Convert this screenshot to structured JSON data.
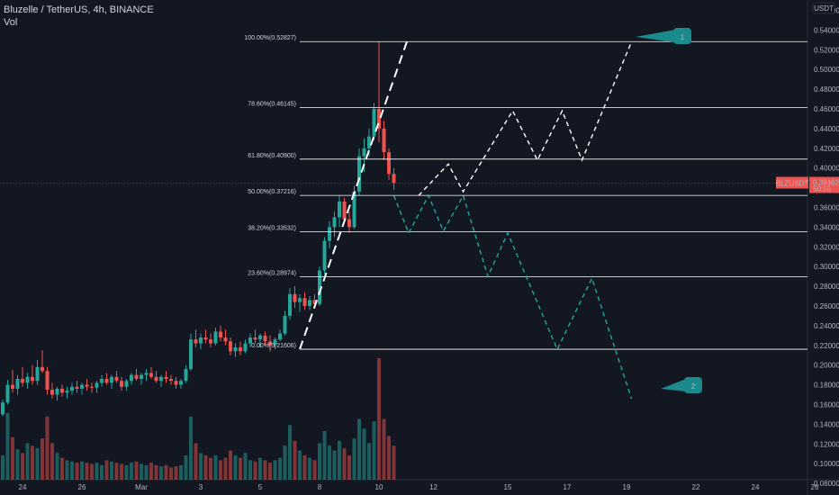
{
  "header": {
    "symbol_line": "Bluzelle / TetherUS, 4h, BINANCE",
    "volume_label": "Vol"
  },
  "currency": "USDT",
  "price_badge": {
    "symbol": "BLZUSDT",
    "value": "0.38462",
    "countdown": "50:55",
    "color": "#ef5350"
  },
  "colors": {
    "up": "#26a69a",
    "down": "#ef5350",
    "background": "#131722",
    "fib_line": "#ffffff",
    "bull_path": "#ffffff",
    "bear_path": "#26a69a",
    "marker": "#1b8a8c"
  },
  "markers": [
    {
      "label": "1",
      "icon": "flag-marker"
    },
    {
      "label": "2",
      "icon": "flag-marker"
    }
  ],
  "chart_data": {
    "type": "candlestick",
    "title": "Bluzelle / TetherUS, 4h, BINANCE",
    "ylabel": "USDT",
    "ylim": [
      0.07,
      0.565
    ],
    "y_ticks": [
      0.56,
      0.54,
      0.52,
      0.5,
      0.48,
      0.46,
      0.44,
      0.42,
      0.4,
      0.38,
      0.36,
      0.34,
      0.32,
      0.3,
      0.28,
      0.26,
      0.24,
      0.22,
      0.2,
      0.18,
      0.16,
      0.14,
      0.12,
      0.1,
      0.08
    ],
    "x_tick_labels": [
      "24",
      "26",
      "Mar",
      "3",
      "5",
      "8",
      "10",
      "12",
      "15",
      "17",
      "19",
      "22",
      "24",
      "26"
    ],
    "x_tick_index": [
      4,
      16,
      28,
      40,
      52,
      64,
      76,
      87,
      102,
      114,
      126,
      140,
      152,
      164
    ],
    "grid": false,
    "fib_levels": [
      {
        "label": "100.00%(0.52827)",
        "value": 0.52827
      },
      {
        "label": "78.60%(0.46145)",
        "value": 0.46145
      },
      {
        "label": "61.80%(0.40900)",
        "value": 0.409
      },
      {
        "label": "50.00%(0.37216)",
        "value": 0.37216
      },
      {
        "label": "38.20%(0.33532)",
        "value": 0.33532
      },
      {
        "label": "23.60%(0.28974)",
        "value": 0.28974
      },
      {
        "label": "0.00%(0.21606)",
        "value": 0.21606
      }
    ],
    "candles": [
      [
        0.15,
        0.165,
        0.148,
        0.162
      ],
      [
        0.162,
        0.185,
        0.16,
        0.18
      ],
      [
        0.18,
        0.195,
        0.172,
        0.176
      ],
      [
        0.176,
        0.19,
        0.17,
        0.186
      ],
      [
        0.186,
        0.198,
        0.178,
        0.182
      ],
      [
        0.182,
        0.192,
        0.176,
        0.188
      ],
      [
        0.188,
        0.2,
        0.18,
        0.184
      ],
      [
        0.184,
        0.205,
        0.18,
        0.198
      ],
      [
        0.198,
        0.215,
        0.192,
        0.194
      ],
      [
        0.194,
        0.198,
        0.17,
        0.175
      ],
      [
        0.175,
        0.182,
        0.166,
        0.17
      ],
      [
        0.17,
        0.178,
        0.164,
        0.176
      ],
      [
        0.176,
        0.18,
        0.168,
        0.172
      ],
      [
        0.172,
        0.178,
        0.166,
        0.174
      ],
      [
        0.174,
        0.182,
        0.17,
        0.178
      ],
      [
        0.178,
        0.184,
        0.172,
        0.176
      ],
      [
        0.176,
        0.182,
        0.17,
        0.18
      ],
      [
        0.18,
        0.186,
        0.174,
        0.178
      ],
      [
        0.178,
        0.182,
        0.172,
        0.177
      ],
      [
        0.177,
        0.184,
        0.172,
        0.182
      ],
      [
        0.182,
        0.19,
        0.178,
        0.186
      ],
      [
        0.186,
        0.192,
        0.18,
        0.182
      ],
      [
        0.182,
        0.19,
        0.176,
        0.188
      ],
      [
        0.188,
        0.194,
        0.182,
        0.184
      ],
      [
        0.184,
        0.188,
        0.174,
        0.178
      ],
      [
        0.178,
        0.186,
        0.174,
        0.184
      ],
      [
        0.184,
        0.192,
        0.18,
        0.19
      ],
      [
        0.19,
        0.196,
        0.184,
        0.186
      ],
      [
        0.186,
        0.192,
        0.18,
        0.19
      ],
      [
        0.19,
        0.196,
        0.184,
        0.192
      ],
      [
        0.192,
        0.198,
        0.186,
        0.188
      ],
      [
        0.188,
        0.194,
        0.182,
        0.184
      ],
      [
        0.184,
        0.19,
        0.178,
        0.188
      ],
      [
        0.188,
        0.194,
        0.182,
        0.186
      ],
      [
        0.186,
        0.19,
        0.18,
        0.184
      ],
      [
        0.184,
        0.188,
        0.176,
        0.18
      ],
      [
        0.18,
        0.186,
        0.176,
        0.184
      ],
      [
        0.184,
        0.2,
        0.182,
        0.196
      ],
      [
        0.196,
        0.232,
        0.194,
        0.226
      ],
      [
        0.226,
        0.236,
        0.218,
        0.222
      ],
      [
        0.222,
        0.232,
        0.216,
        0.228
      ],
      [
        0.228,
        0.236,
        0.222,
        0.226
      ],
      [
        0.226,
        0.232,
        0.218,
        0.222
      ],
      [
        0.222,
        0.238,
        0.22,
        0.234
      ],
      [
        0.234,
        0.24,
        0.224,
        0.228
      ],
      [
        0.228,
        0.236,
        0.22,
        0.224
      ],
      [
        0.224,
        0.228,
        0.21,
        0.214
      ],
      [
        0.214,
        0.222,
        0.208,
        0.218
      ],
      [
        0.218,
        0.224,
        0.21,
        0.214
      ],
      [
        0.214,
        0.226,
        0.212,
        0.222
      ],
      [
        0.222,
        0.232,
        0.218,
        0.228
      ],
      [
        0.228,
        0.236,
        0.222,
        0.226
      ],
      [
        0.226,
        0.232,
        0.218,
        0.23
      ],
      [
        0.23,
        0.234,
        0.22,
        0.224
      ],
      [
        0.224,
        0.23,
        0.214,
        0.22
      ],
      [
        0.22,
        0.228,
        0.216,
        0.226
      ],
      [
        0.226,
        0.236,
        0.224,
        0.232
      ],
      [
        0.232,
        0.255,
        0.23,
        0.25
      ],
      [
        0.25,
        0.278,
        0.246,
        0.272
      ],
      [
        0.272,
        0.28,
        0.258,
        0.264
      ],
      [
        0.264,
        0.272,
        0.254,
        0.268
      ],
      [
        0.268,
        0.274,
        0.256,
        0.26
      ],
      [
        0.26,
        0.27,
        0.256,
        0.266
      ],
      [
        0.266,
        0.272,
        0.258,
        0.262
      ],
      [
        0.262,
        0.3,
        0.26,
        0.296
      ],
      [
        0.296,
        0.33,
        0.292,
        0.326
      ],
      [
        0.326,
        0.346,
        0.318,
        0.34
      ],
      [
        0.34,
        0.356,
        0.33,
        0.35
      ],
      [
        0.35,
        0.372,
        0.34,
        0.366
      ],
      [
        0.366,
        0.37,
        0.344,
        0.348
      ],
      [
        0.348,
        0.356,
        0.334,
        0.34
      ],
      [
        0.34,
        0.382,
        0.338,
        0.376
      ],
      [
        0.376,
        0.42,
        0.372,
        0.412
      ],
      [
        0.412,
        0.43,
        0.396,
        0.42
      ],
      [
        0.42,
        0.44,
        0.412,
        0.432
      ],
      [
        0.432,
        0.466,
        0.428,
        0.46
      ],
      [
        0.46,
        0.528,
        0.426,
        0.44
      ],
      [
        0.44,
        0.448,
        0.408,
        0.416
      ],
      [
        0.416,
        0.42,
        0.388,
        0.394
      ],
      [
        0.394,
        0.4,
        0.378,
        0.385
      ]
    ],
    "volume_scale_max": 1.0,
    "volumes": [
      0.2,
      0.55,
      0.35,
      0.25,
      0.22,
      0.3,
      0.28,
      0.26,
      0.34,
      0.52,
      0.3,
      0.22,
      0.18,
      0.16,
      0.15,
      0.14,
      0.15,
      0.14,
      0.13,
      0.14,
      0.12,
      0.16,
      0.15,
      0.14,
      0.13,
      0.12,
      0.14,
      0.15,
      0.13,
      0.12,
      0.14,
      0.12,
      0.11,
      0.12,
      0.1,
      0.11,
      0.12,
      0.2,
      0.52,
      0.3,
      0.22,
      0.2,
      0.18,
      0.2,
      0.16,
      0.18,
      0.24,
      0.2,
      0.18,
      0.22,
      0.16,
      0.15,
      0.18,
      0.16,
      0.14,
      0.16,
      0.18,
      0.28,
      0.45,
      0.32,
      0.24,
      0.2,
      0.18,
      0.16,
      0.3,
      0.4,
      0.28,
      0.24,
      0.32,
      0.26,
      0.2,
      0.34,
      0.5,
      0.42,
      0.3,
      0.48,
      1.0,
      0.5,
      0.36,
      0.28
    ],
    "bull_projection": [
      [
        84,
        0.372
      ],
      [
        90,
        0.404
      ],
      [
        93,
        0.376
      ],
      [
        103,
        0.458
      ],
      [
        108,
        0.408
      ],
      [
        113,
        0.458
      ],
      [
        117,
        0.408
      ],
      [
        127,
        0.528
      ]
    ],
    "bear_projection": [
      [
        79,
        0.372
      ],
      [
        82,
        0.334
      ],
      [
        86,
        0.372
      ],
      [
        89,
        0.336
      ],
      [
        93,
        0.372
      ],
      [
        98,
        0.29
      ],
      [
        102,
        0.334
      ],
      [
        112,
        0.216
      ],
      [
        119,
        0.288
      ],
      [
        127,
        0.166
      ]
    ]
  }
}
